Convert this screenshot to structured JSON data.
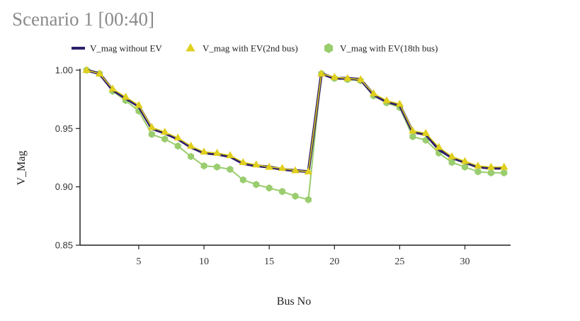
{
  "title": "Scenario 1 [00:40]",
  "chart_data": {
    "type": "line",
    "xlabel": "Bus No",
    "ylabel": "V_Mag",
    "xlim": [
      0.5,
      33.5
    ],
    "ylim": [
      0.85,
      1.0
    ],
    "xticks": [
      5,
      10,
      15,
      20,
      25,
      30
    ],
    "yticks": [
      0.85,
      0.9,
      0.95,
      1.0
    ],
    "ytick_labels": [
      "0.85",
      "0.90",
      "0.95",
      "1.00"
    ],
    "grid": false,
    "legend_position": "top",
    "x": [
      1,
      2,
      3,
      4,
      5,
      6,
      7,
      8,
      9,
      10,
      11,
      12,
      13,
      14,
      15,
      16,
      17,
      18,
      19,
      20,
      21,
      22,
      23,
      24,
      25,
      26,
      27,
      28,
      29,
      30,
      31,
      32,
      33
    ],
    "series": [
      {
        "name": "V_mag without EV",
        "color": "#2e1f6b",
        "marker": "line",
        "values": [
          1.0,
          0.997,
          0.983,
          0.976,
          0.969,
          0.95,
          0.946,
          0.941,
          0.934,
          0.929,
          0.928,
          0.926,
          0.92,
          0.918,
          0.917,
          0.915,
          0.914,
          0.913,
          0.997,
          0.993,
          0.993,
          0.992,
          0.979,
          0.973,
          0.97,
          0.947,
          0.945,
          0.932,
          0.925,
          0.921,
          0.917,
          0.916,
          0.916
        ]
      },
      {
        "name": "V_mag with EV(2nd bus)",
        "color": "#e0cf1d",
        "marker": "triangle",
        "values": [
          1.0,
          0.997,
          0.984,
          0.977,
          0.97,
          0.951,
          0.947,
          0.942,
          0.935,
          0.93,
          0.929,
          0.927,
          0.921,
          0.919,
          0.917,
          0.916,
          0.914,
          0.913,
          0.997,
          0.994,
          0.993,
          0.992,
          0.98,
          0.974,
          0.971,
          0.948,
          0.946,
          0.934,
          0.926,
          0.922,
          0.918,
          0.917,
          0.917
        ]
      },
      {
        "name": "V_mag with EV(18th bus)",
        "color": "#9acd6e",
        "marker": "hexagon",
        "values": [
          1.0,
          0.997,
          0.982,
          0.974,
          0.965,
          0.945,
          0.941,
          0.935,
          0.926,
          0.918,
          0.917,
          0.915,
          0.906,
          0.902,
          0.899,
          0.896,
          0.892,
          0.889,
          0.997,
          0.993,
          0.992,
          0.991,
          0.978,
          0.972,
          0.968,
          0.943,
          0.94,
          0.929,
          0.921,
          0.917,
          0.913,
          0.912,
          0.912
        ]
      }
    ]
  }
}
